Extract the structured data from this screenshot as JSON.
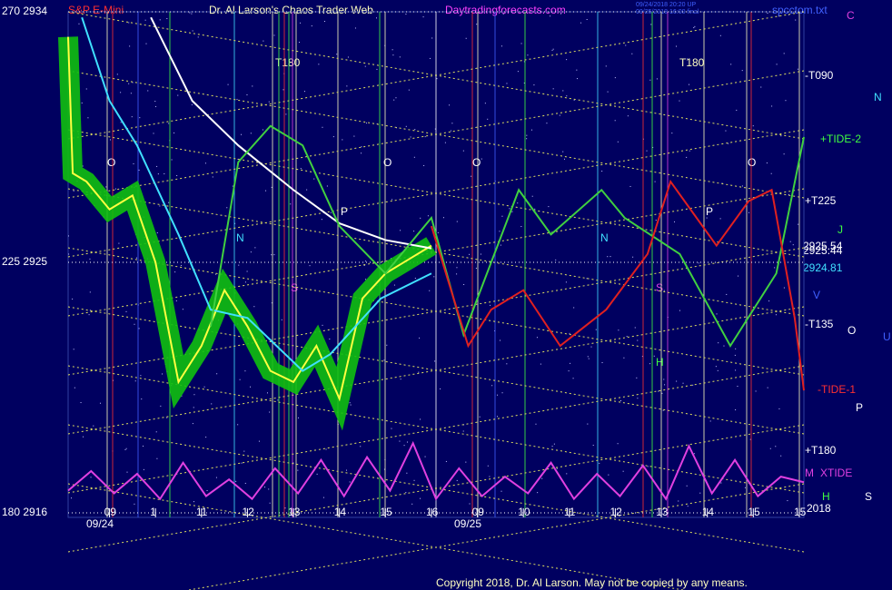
{
  "chart_data": {
    "type": "line",
    "header": {
      "symbol": "S&P E-Mini",
      "title": "Dr. Al Larson's Chaos Trader Web",
      "site": "Daytradingforecasts.com",
      "stamp1": "09/24/2018 20:20 UP",
      "stamp2": "09/25/2018 16:00 final",
      "file": "spcctom.txt",
      "corner": "C"
    },
    "footer": "Copyright 2018, Dr. Al Larson. May not be copied by any means.",
    "ylim": [
      2916,
      2934
    ],
    "yticks": [
      {
        "value": 2934,
        "label": "270  2934"
      },
      {
        "value": 2925,
        "label": "225  2925"
      },
      {
        "value": 2916,
        "label": "180  2916"
      }
    ],
    "xlim": [
      -0.9,
      15.1
    ],
    "xticks": [
      {
        "value": 0,
        "label": "09"
      },
      1,
      {
        "value": 2,
        "label": "11"
      },
      {
        "value": 3,
        "label": "12"
      },
      {
        "value": 4,
        "label": "13"
      },
      {
        "value": 5,
        "label": "14"
      },
      {
        "value": 6,
        "label": "15"
      },
      {
        "value": 7,
        "label": "16"
      },
      {
        "value": 8,
        "label": "09"
      },
      {
        "value": 9,
        "label": "10"
      },
      {
        "value": 10,
        "label": "11"
      },
      {
        "value": 11,
        "label": "12"
      },
      {
        "value": 12,
        "label": "13"
      },
      {
        "value": 13,
        "label": "14"
      },
      {
        "value": 14,
        "label": "15"
      },
      {
        "value": 15,
        "label": "15"
      }
    ],
    "dates": [
      "09/24",
      "09/25"
    ],
    "grid": true,
    "series": [
      {
        "color": "#ffff40",
        "band_color": "#10c010",
        "x": [
          -0.9,
          -0.8,
          -0.5,
          0,
          0.5,
          1.0,
          1.5,
          2.0,
          2.5,
          3.0,
          3.5,
          4.0,
          4.5,
          5.0,
          5.5,
          6.0,
          6.5,
          7.0
        ],
        "values": [
          2933.1,
          2928.2,
          2927.9,
          2926.9,
          2927.4,
          2925.0,
          2920.7,
          2922.0,
          2924.0,
          2922.7,
          2921.1,
          2920.7,
          2922.0,
          2920.1,
          2923.7,
          2924.6,
          2925.1,
          2925.6
        ]
      },
      {
        "color": "#40e0ff",
        "x": [
          -0.6,
          0,
          0.6,
          1.5,
          2.2,
          3.0,
          4.2,
          4.8,
          5.9,
          7.0
        ],
        "values": [
          2933.8,
          2930.8,
          2929.2,
          2926.0,
          2923.3,
          2923.0,
          2921.1,
          2921.7,
          2923.7,
          2924.6
        ]
      },
      {
        "color": "#ffffff",
        "x": [
          0.9,
          1.8,
          2.8,
          4.0,
          5.0,
          6.0,
          7.0
        ],
        "values": [
          2933.8,
          2930.8,
          2929.2,
          2927.6,
          2926.4,
          2925.8,
          2925.5
        ]
      },
      {
        "color": "#40d040",
        "x": [
          2.2,
          2.8,
          3.5,
          4.2,
          5.0,
          6.0,
          7.0,
          7.7,
          8.9,
          9.6,
          10.7,
          11.2,
          12.4,
          13.5,
          14.5,
          15.1
        ],
        "values": [
          2922.7,
          2928.6,
          2929.9,
          2929.2,
          2926.3,
          2924.6,
          2926.6,
          2922.4,
          2927.6,
          2926.0,
          2927.6,
          2926.6,
          2925.3,
          2922.0,
          2924.6,
          2929.5
        ]
      },
      {
        "color": "#e02020",
        "x": [
          7.0,
          7.8,
          8.3,
          9.0,
          9.8,
          10.8,
          11.7,
          12.2,
          13.2,
          13.9,
          14.4,
          14.9,
          15.1
        ],
        "values": [
          2926.3,
          2922.0,
          2923.3,
          2924.0,
          2922.0,
          2923.3,
          2925.3,
          2927.9,
          2925.6,
          2927.2,
          2927.6,
          2923.0,
          2920.4
        ]
      },
      {
        "color": "#e040e0",
        "x": [
          -0.9,
          -0.4,
          0.1,
          0.6,
          1.1,
          1.6,
          2.1,
          2.6,
          3.1,
          3.6,
          4.1,
          4.6,
          5.1,
          5.6,
          6.1,
          6.6,
          7.1,
          7.6,
          8.1,
          8.6,
          9.1,
          9.6,
          10.1,
          10.6,
          11.1,
          11.6,
          12.1,
          12.6,
          13.1,
          13.6,
          14.1,
          14.6,
          15.1
        ],
        "values": [
          2916.8,
          2917.5,
          2916.7,
          2917.4,
          2916.5,
          2917.8,
          2916.6,
          2917.2,
          2916.5,
          2917.6,
          2916.7,
          2917.9,
          2916.6,
          2918.0,
          2916.8,
          2918.5,
          2916.5,
          2917.6,
          2916.6,
          2917.3,
          2916.7,
          2917.8,
          2916.5,
          2917.4,
          2916.6,
          2917.7,
          2916.5,
          2918.4,
          2916.7,
          2917.9,
          2916.6,
          2917.3,
          2917.1
        ]
      }
    ],
    "right_labels": [
      "-T090",
      "+TIDE-2",
      "+T225",
      "2925.54",
      "2925.44",
      "2924.81",
      "-T135",
      "-TIDE-1",
      "+T180",
      "XTIDE",
      "2018"
    ],
    "letters": [
      "N",
      "J",
      "V",
      "O",
      "U",
      "P",
      "S",
      "M",
      "H"
    ],
    "annotations": [
      "T180",
      "T180",
      "O",
      "O",
      "O",
      "O",
      "P",
      "P",
      "N",
      "N",
      "S",
      "S",
      "H"
    ]
  }
}
